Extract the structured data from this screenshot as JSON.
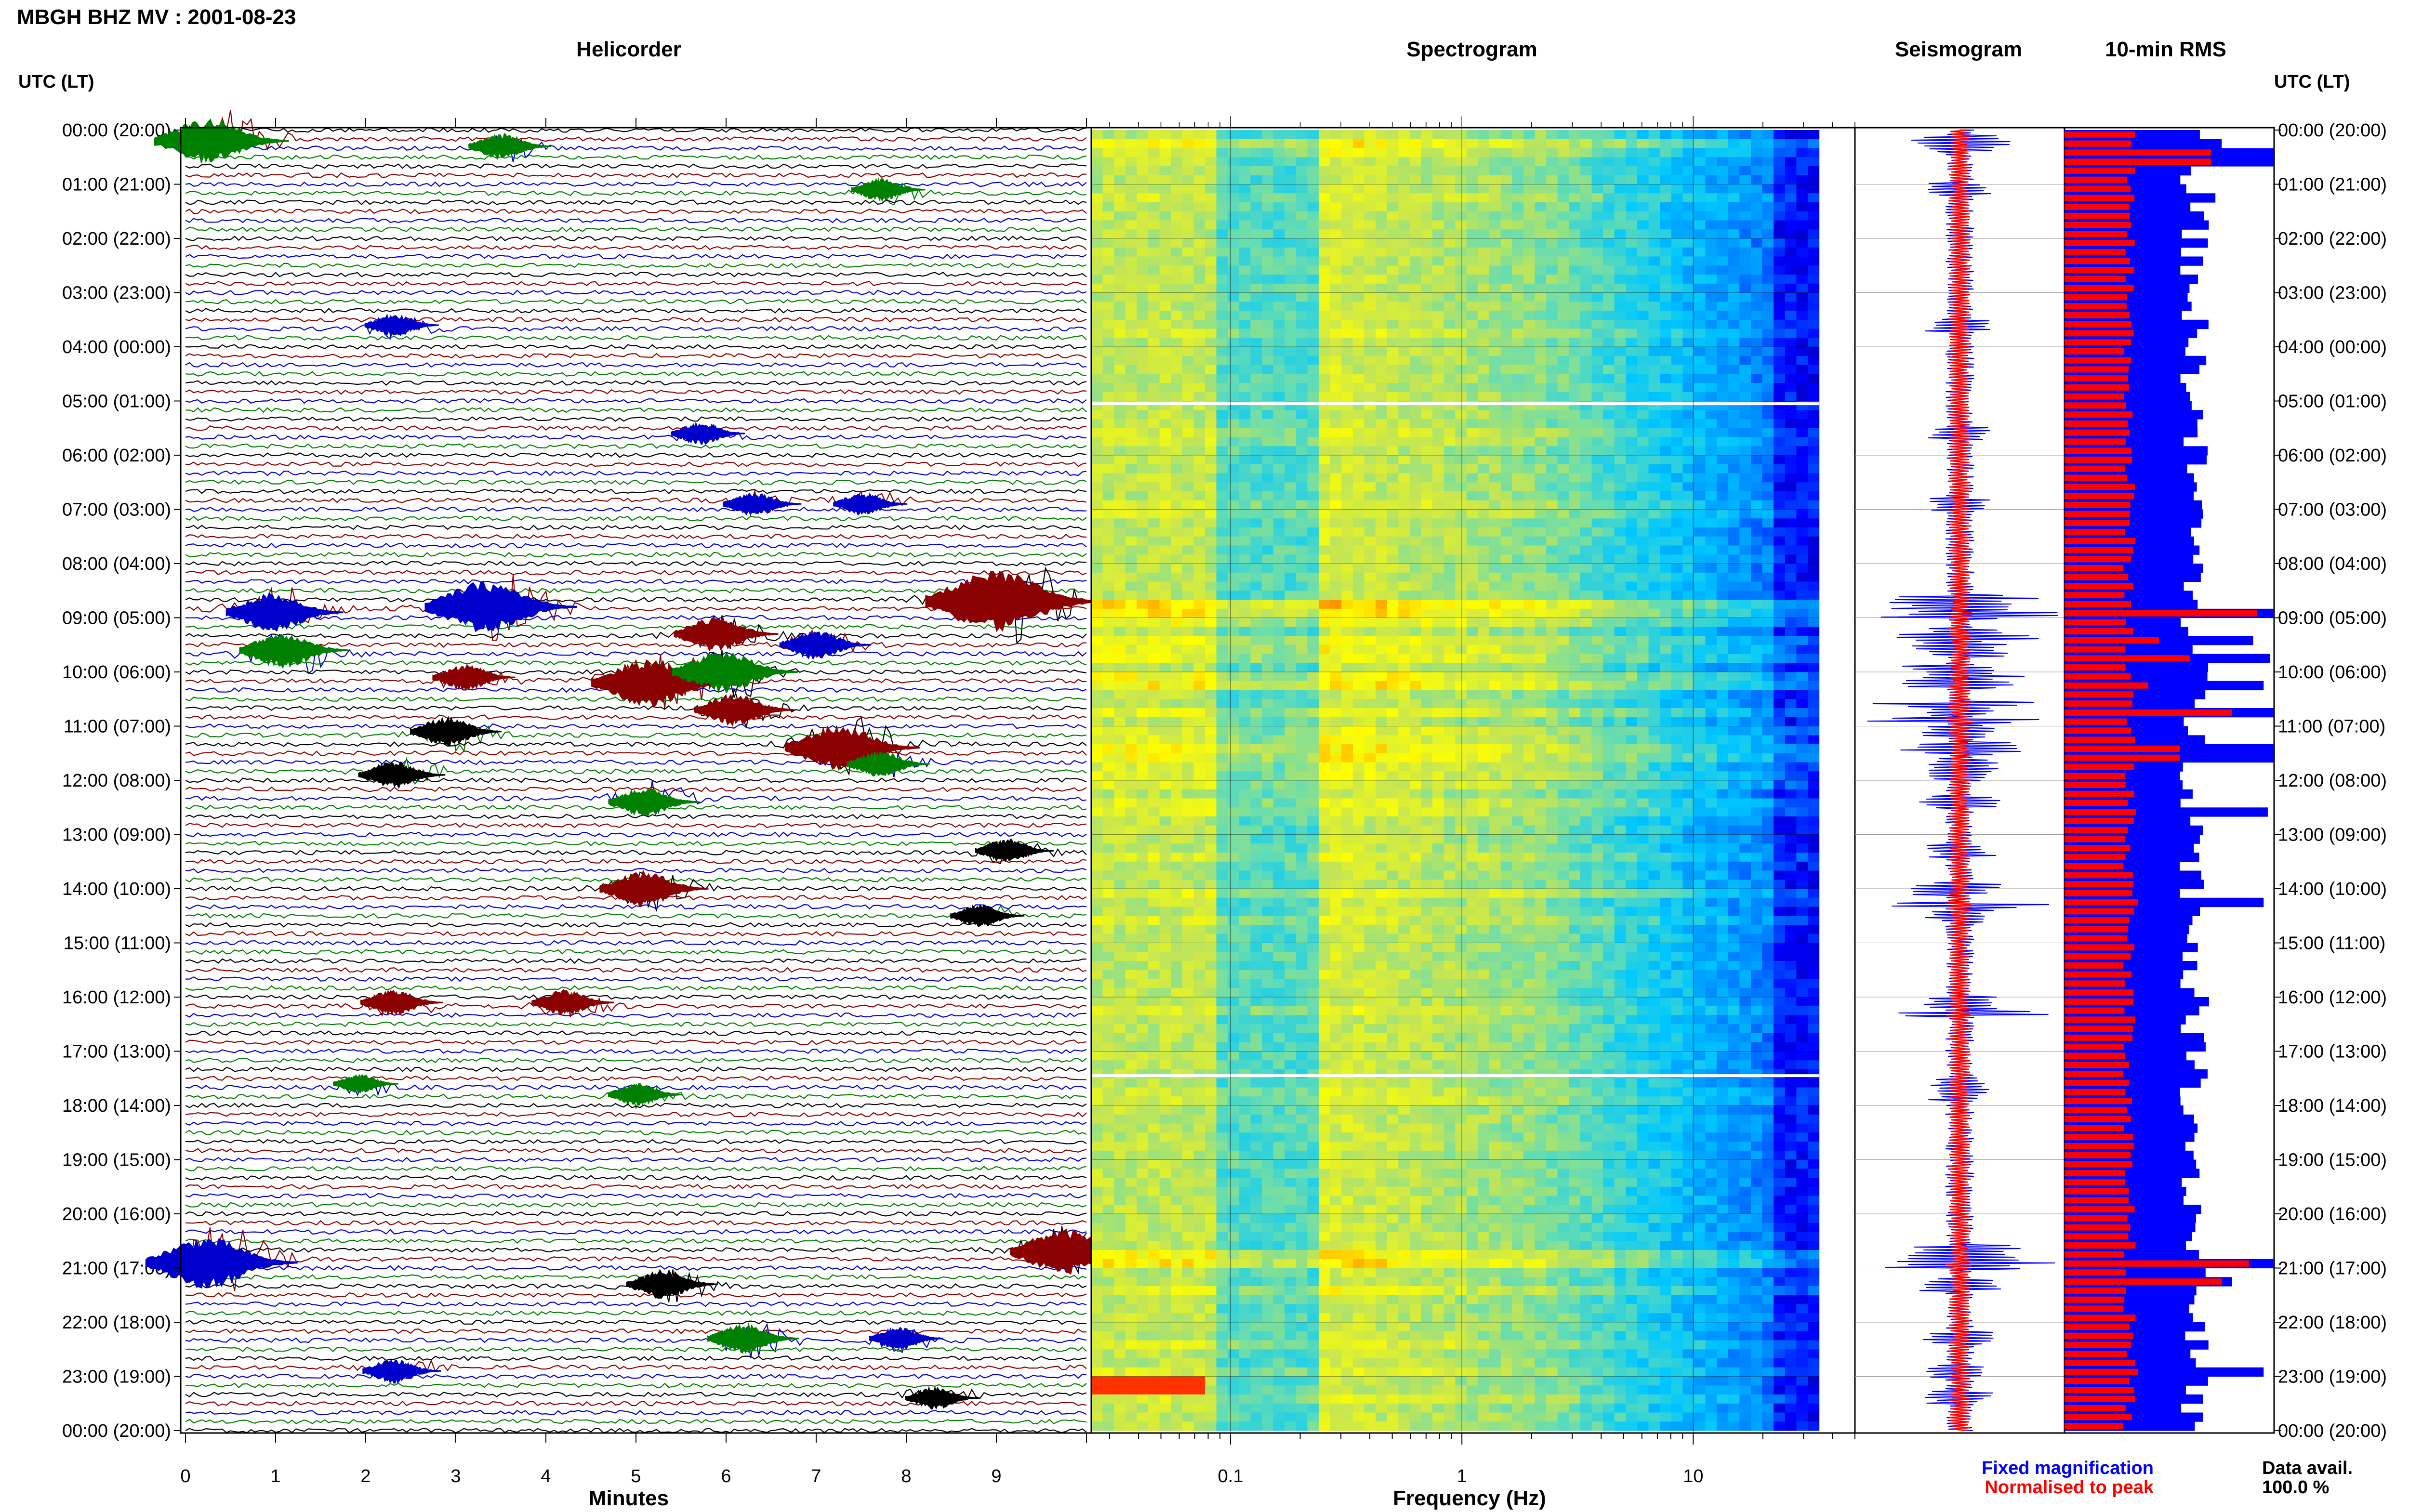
{
  "title": "MBGH BHZ MV : 2001-08-23",
  "panels": {
    "helicorder": "Helicorder",
    "spectrogram": "Spectrogram",
    "seismogram": "Seismogram",
    "rms": "10-min RMS"
  },
  "time_axis_label": "UTC (LT)",
  "chart_data": [
    {
      "type": "line",
      "name": "helicorder",
      "xlabel": "Minutes",
      "x_ticks": [
        0,
        1,
        2,
        3,
        4,
        5,
        6,
        7,
        8,
        9
      ],
      "xlim": [
        0,
        10
      ],
      "trace_colors": [
        "#000000",
        "#8b0000",
        "#0000cd",
        "#008000"
      ],
      "rows": 144,
      "y_ticks": [
        "00:00 (20:00)",
        "01:00 (21:00)",
        "02:00 (22:00)",
        "03:00 (23:00)",
        "04:00 (00:00)",
        "05:00 (01:00)",
        "06:00 (02:00)",
        "07:00 (03:00)",
        "08:00 (04:00)",
        "09:00 (05:00)",
        "10:00 (06:00)",
        "11:00 (07:00)",
        "12:00 (08:00)",
        "13:00 (09:00)",
        "14:00 (10:00)",
        "15:00 (11:00)",
        "16:00 (12:00)",
        "17:00 (13:00)",
        "18:00 (14:00)",
        "19:00 (15:00)",
        "20:00 (16:00)",
        "21:00 (17:00)",
        "22:00 (18:00)",
        "23:00 (19:00)",
        "00:00 (20:00)"
      ],
      "events": [
        {
          "hour": 0.2,
          "minute": 0.4,
          "amp": 2.2,
          "color": "#008000"
        },
        {
          "hour": 0.3,
          "minute": 3.6,
          "amp": 1.0,
          "color": "#008000"
        },
        {
          "hour": 1.1,
          "minute": 7.8,
          "amp": 0.8,
          "color": "#008000"
        },
        {
          "hour": 3.6,
          "minute": 2.4,
          "amp": 0.8,
          "color": "#0000cd"
        },
        {
          "hour": 5.6,
          "minute": 5.8,
          "amp": 0.8,
          "color": "#0000cd"
        },
        {
          "hour": 6.9,
          "minute": 6.4,
          "amp": 0.9,
          "color": "#0000cd"
        },
        {
          "hour": 6.9,
          "minute": 7.6,
          "amp": 0.8,
          "color": "#0000cd"
        },
        {
          "hour": 8.9,
          "minute": 1.1,
          "amp": 1.8,
          "color": "#0000cd"
        },
        {
          "hour": 8.8,
          "minute": 3.5,
          "amp": 2.6,
          "color": "#0000cd"
        },
        {
          "hour": 8.7,
          "minute": 9.2,
          "amp": 3.2,
          "color": "#8b0000"
        },
        {
          "hour": 9.3,
          "minute": 6.0,
          "amp": 1.5,
          "color": "#8b0000"
        },
        {
          "hour": 9.6,
          "minute": 1.2,
          "amp": 1.6,
          "color": "#008000"
        },
        {
          "hour": 9.5,
          "minute": 7.1,
          "amp": 1.2,
          "color": "#0000cd"
        },
        {
          "hour": 10.2,
          "minute": 5.3,
          "amp": 2.4,
          "color": "#8b0000"
        },
        {
          "hour": 10.0,
          "minute": 6.1,
          "amp": 2.0,
          "color": "#008000"
        },
        {
          "hour": 10.1,
          "minute": 3.2,
          "amp": 1.0,
          "color": "#8b0000"
        },
        {
          "hour": 10.7,
          "minute": 6.2,
          "amp": 1.4,
          "color": "#8b0000"
        },
        {
          "hour": 11.1,
          "minute": 3.0,
          "amp": 1.2,
          "color": "#000000"
        },
        {
          "hour": 11.4,
          "minute": 7.4,
          "amp": 2.2,
          "color": "#8b0000"
        },
        {
          "hour": 11.7,
          "minute": 7.8,
          "amp": 1.0,
          "color": "#008000"
        },
        {
          "hour": 11.9,
          "minute": 2.4,
          "amp": 1.1,
          "color": "#000000"
        },
        {
          "hour": 12.4,
          "minute": 5.2,
          "amp": 1.2,
          "color": "#008000"
        },
        {
          "hour": 13.3,
          "minute": 9.2,
          "amp": 0.9,
          "color": "#000000"
        },
        {
          "hour": 14.0,
          "minute": 5.2,
          "amp": 1.6,
          "color": "#8b0000"
        },
        {
          "hour": 14.5,
          "minute": 8.9,
          "amp": 0.8,
          "color": "#000000"
        },
        {
          "hour": 16.1,
          "minute": 2.4,
          "amp": 1.0,
          "color": "#8b0000"
        },
        {
          "hour": 16.1,
          "minute": 4.3,
          "amp": 1.0,
          "color": "#8b0000"
        },
        {
          "hour": 17.6,
          "minute": 2.0,
          "amp": 0.6,
          "color": "#008000"
        },
        {
          "hour": 17.8,
          "minute": 5.1,
          "amp": 0.8,
          "color": "#008000"
        },
        {
          "hour": 20.9,
          "minute": 0.4,
          "amp": 2.6,
          "color": "#0000cd"
        },
        {
          "hour": 20.7,
          "minute": 9.9,
          "amp": 2.2,
          "color": "#8b0000"
        },
        {
          "hour": 21.3,
          "minute": 5.4,
          "amp": 1.2,
          "color": "#000000"
        },
        {
          "hour": 22.3,
          "minute": 6.3,
          "amp": 1.2,
          "color": "#008000"
        },
        {
          "hour": 22.3,
          "minute": 8.0,
          "amp": 0.8,
          "color": "#0000cd"
        },
        {
          "hour": 22.9,
          "minute": 2.4,
          "amp": 0.9,
          "color": "#0000cd"
        },
        {
          "hour": 23.4,
          "minute": 8.4,
          "amp": 0.8,
          "color": "#000000"
        }
      ]
    },
    {
      "type": "heatmap",
      "name": "spectrogram",
      "xlabel": "Frequency (Hz)",
      "x_scale": "log",
      "xlim": [
        0.025,
        50
      ],
      "x_ticks": [
        0.1,
        1,
        10
      ],
      "x_tick_labels": [
        "0.1",
        "1",
        "10"
      ],
      "data_end_hz": 35,
      "gap_hours": [
        5.05,
        17.45
      ],
      "colormap": [
        "#00008b",
        "#0000ff",
        "#0080ff",
        "#00c8ff",
        "#64dcb4",
        "#c8e650",
        "#ffff00",
        "#ff8000",
        "#ff0000"
      ]
    },
    {
      "type": "line",
      "name": "seismogram",
      "series": [
        {
          "name": "Fixed magnification",
          "color": "#0000ff"
        },
        {
          "name": "Normalised to peak",
          "color": "#ff0000"
        }
      ],
      "spikes_hours": [
        8.95,
        9.35,
        10.6,
        10.9,
        14.3,
        16.3,
        20.95
      ]
    },
    {
      "type": "bar",
      "name": "10-min RMS",
      "series": [
        {
          "name": "Fixed magnification",
          "color": "#0000ff"
        },
        {
          "name": "Normalised to peak",
          "color": "#ff0000"
        }
      ],
      "fixed_max": 1,
      "normalised_max": 1,
      "base_fixed": 0.62,
      "base_normalised": 0.31,
      "peaks": [
        {
          "hour": 0.5,
          "fixed": 1.0,
          "normalised": 0.7
        },
        {
          "hour": 0.3,
          "fixed": 0.75,
          "normalised": 0.32
        },
        {
          "hour": 1.2,
          "fixed": 0.72,
          "normalised": 0.33
        },
        {
          "hour": 8.95,
          "fixed": 1.0,
          "normalised": 0.92
        },
        {
          "hour": 9.4,
          "fixed": 0.9,
          "normalised": 0.45
        },
        {
          "hour": 9.8,
          "fixed": 0.98,
          "normalised": 0.6
        },
        {
          "hour": 10.2,
          "fixed": 0.95,
          "normalised": 0.4
        },
        {
          "hour": 10.7,
          "fixed": 1.0,
          "normalised": 0.8
        },
        {
          "hour": 11.5,
          "fixed": 1.0,
          "normalised": 0.55
        },
        {
          "hour": 12.6,
          "fixed": 0.97,
          "normalised": 0.34
        },
        {
          "hour": 14.3,
          "fixed": 0.95,
          "normalised": 0.35
        },
        {
          "hour": 20.95,
          "fixed": 1.0,
          "normalised": 0.88
        },
        {
          "hour": 21.2,
          "fixed": 0.8,
          "normalised": 0.75
        },
        {
          "hour": 22.9,
          "fixed": 0.95,
          "normalised": 0.35
        }
      ]
    }
  ],
  "legend": {
    "fixed": "Fixed magnification",
    "normalised": "Normalised to peak"
  },
  "data_avail": {
    "label": "Data avail.",
    "value": "100.0 %"
  },
  "colors": {
    "fixed": "#0000ff",
    "normalised": "#ff0000",
    "frame": "#000000"
  }
}
